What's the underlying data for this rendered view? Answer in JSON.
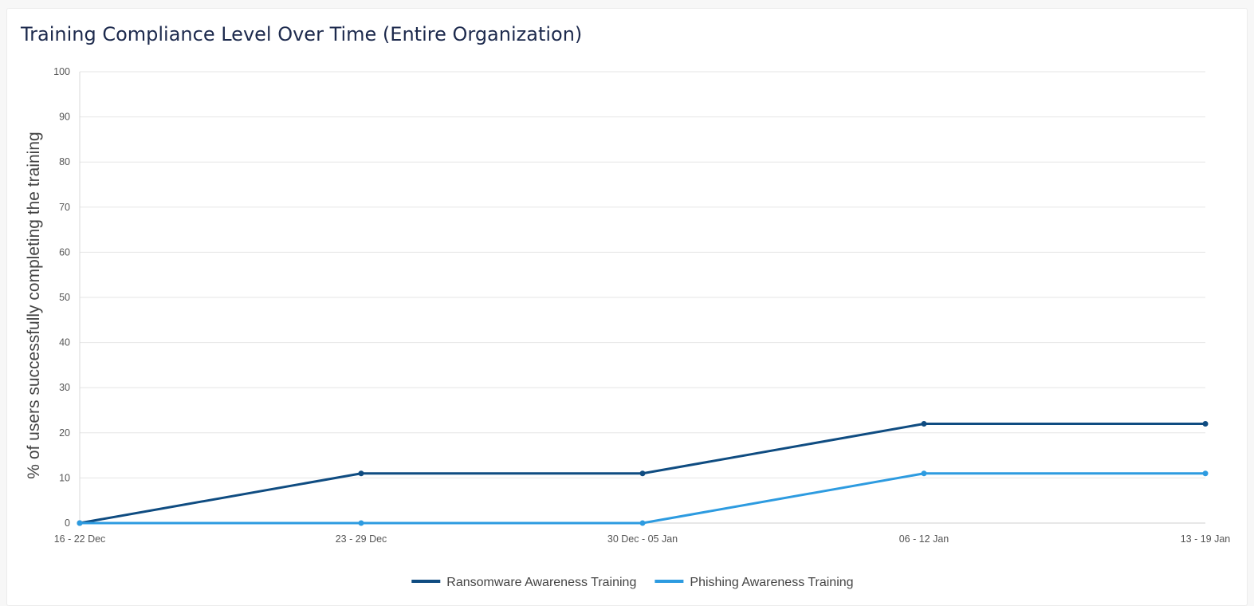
{
  "card": {
    "title": "Training Compliance Level Over Time (Entire Organization)"
  },
  "chart_data": {
    "type": "line",
    "title": "Training Compliance Level Over Time (Entire Organization)",
    "xlabel": "",
    "ylabel": "% of users successfully completing the training",
    "categories": [
      "16 - 22 Dec",
      "23 - 29 Dec",
      "30 Dec - 05 Jan",
      "06 - 12 Jan",
      "13 - 19 Jan"
    ],
    "ylim": [
      0,
      100
    ],
    "yticks": [
      0,
      10,
      20,
      30,
      40,
      50,
      60,
      70,
      80,
      90,
      100
    ],
    "grid": true,
    "legend_position": "bottom",
    "series": [
      {
        "name": "Ransomware Awareness Training",
        "color": "#0f4c81",
        "values": [
          0,
          11,
          11,
          22,
          22
        ]
      },
      {
        "name": "Phishing Awareness Training",
        "color": "#2d9be0",
        "values": [
          0,
          0,
          0,
          11,
          11
        ]
      }
    ]
  }
}
